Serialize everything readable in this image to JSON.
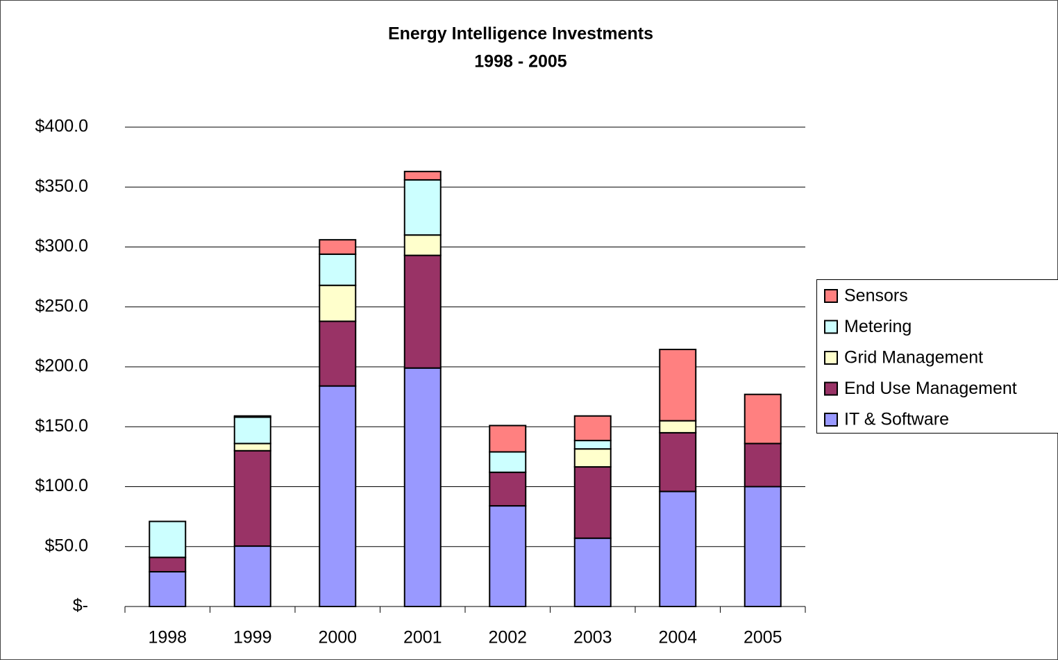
{
  "chart_data": {
    "type": "stacked_bar",
    "title": "Energy Intelligence Investments",
    "subtitle": "1998 - 2005",
    "categories": [
      "1998",
      "1999",
      "2000",
      "2001",
      "2002",
      "2003",
      "2004",
      "2005"
    ],
    "series": [
      {
        "name": "IT & Software",
        "color": "#9999ff",
        "values": [
          29,
          50.4,
          184,
          199,
          84,
          57,
          96,
          100
        ]
      },
      {
        "name": "End Use Management",
        "color": "#993366",
        "values": [
          12,
          79.6,
          54,
          94,
          28,
          59.5,
          49,
          36
        ]
      },
      {
        "name": "Grid Management",
        "color": "#ffffcc",
        "values": [
          0,
          6,
          30,
          17,
          0,
          15,
          10,
          0
        ]
      },
      {
        "name": "Metering",
        "color": "#ccffff",
        "values": [
          30,
          22,
          26,
          46,
          17,
          7,
          0,
          0
        ]
      },
      {
        "name": "Sensors",
        "color": "#ff8080",
        "values": [
          0,
          1,
          12,
          7,
          22,
          20.5,
          59.5,
          41
        ]
      }
    ],
    "ylim": [
      0,
      400
    ],
    "yticks": [
      {
        "value": 0,
        "label": "$-"
      },
      {
        "value": 50,
        "label": "$50.0"
      },
      {
        "value": 100,
        "label": "$100.0"
      },
      {
        "value": 150,
        "label": "$150.0"
      },
      {
        "value": 200,
        "label": "$200.0"
      },
      {
        "value": 250,
        "label": "$250.0"
      },
      {
        "value": 300,
        "label": "$300.0"
      },
      {
        "value": 350,
        "label": "$350.0"
      },
      {
        "value": 400,
        "label": "$400.0"
      }
    ],
    "grid": true,
    "legend": "right"
  }
}
